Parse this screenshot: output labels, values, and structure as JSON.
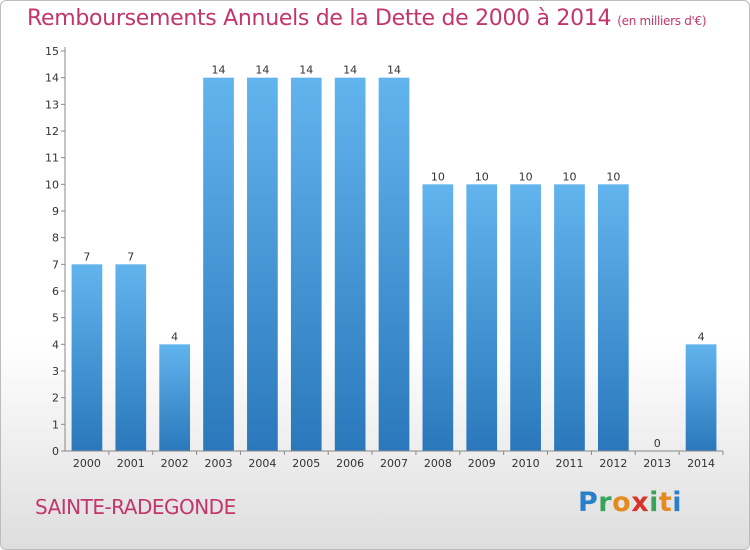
{
  "header": {
    "title": "Remboursements Annuels de la Dette de 2000 à 2014",
    "unit": "(en milliers d'€)"
  },
  "footer": {
    "city": "SAINTE-RADEGONDE",
    "brand_letters": [
      {
        "char": "P",
        "color": "#2a7fc9"
      },
      {
        "char": "r",
        "color": "#3aa35a"
      },
      {
        "char": "o",
        "color": "#e58a1f"
      },
      {
        "char": "x",
        "color": "#d9342b"
      },
      {
        "char": "i",
        "color": "#3aa35a"
      },
      {
        "char": "t",
        "color": "#e58a1f"
      },
      {
        "char": "i",
        "color": "#2a7fc9"
      }
    ]
  },
  "chart_data": {
    "type": "bar",
    "categories": [
      "2000",
      "2001",
      "2002",
      "2003",
      "2004",
      "2005",
      "2006",
      "2007",
      "2008",
      "2009",
      "2010",
      "2011",
      "2012",
      "2013",
      "2014"
    ],
    "values": [
      7,
      7,
      4,
      14,
      14,
      14,
      14,
      14,
      10,
      10,
      10,
      10,
      10,
      0,
      4
    ],
    "data_labels": [
      "7",
      "7",
      "4",
      "14",
      "14",
      "14",
      "14",
      "14",
      "10",
      "10",
      "10",
      "10",
      "10",
      "0",
      "4"
    ],
    "ylim": [
      0,
      15
    ],
    "yticks": [
      "0",
      "1",
      "2",
      "3",
      "4",
      "5",
      "6",
      "7",
      "8",
      "9",
      "10",
      "11",
      "12",
      "13",
      "14",
      "15"
    ],
    "grid": false,
    "bar_color_top": "#62b4ee",
    "bar_color_bottom": "#2a78bb",
    "text_color": "#333333",
    "axis_color": "#888888"
  }
}
